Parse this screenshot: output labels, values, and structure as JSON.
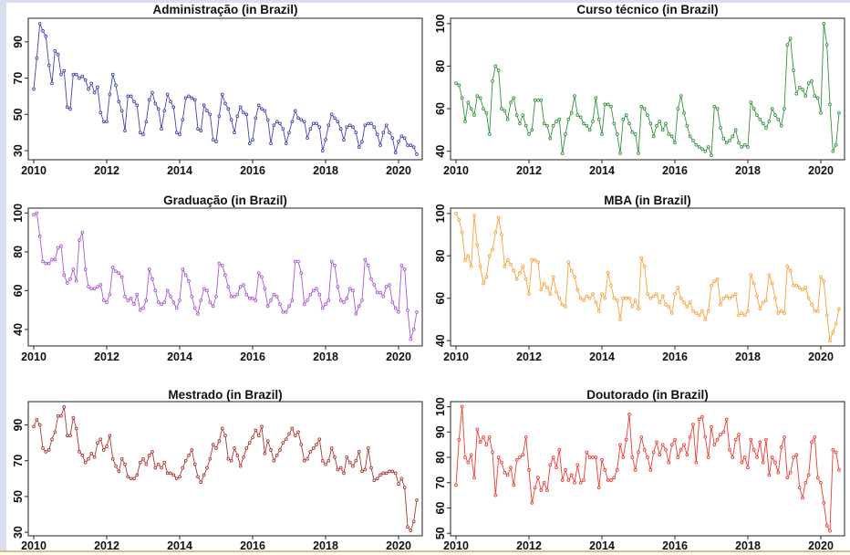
{
  "page": {
    "background": "#ffffff",
    "top_strip_color": "#d9ddf0",
    "left_strip_color": "#d9ddf0",
    "bottom_line_color": "#d9be7f",
    "bottom_strip_color": "#fffdf2",
    "axis_color": "#333333",
    "text_color": "#111111"
  },
  "chart_data": [
    {
      "type": "line",
      "title": "Administração (in Brazil)",
      "color": "#4143b0",
      "frequency": "monthly",
      "x_start": "2010-01",
      "x_end": "2020-07",
      "xticks": [
        2010,
        2012,
        2014,
        2016,
        2018,
        2020
      ],
      "yticks": [
        30,
        50,
        70,
        90
      ],
      "ylim": [
        25,
        103
      ],
      "xlim": [
        2009.85,
        2020.65
      ],
      "values": [
        64,
        81,
        100,
        96,
        93,
        77,
        67,
        85,
        83,
        72,
        74,
        54,
        53,
        72,
        72,
        70,
        71,
        69,
        64,
        67,
        62,
        65,
        51,
        46,
        46,
        61,
        72,
        66,
        57,
        52,
        41,
        60,
        60,
        57,
        55,
        40,
        39,
        46,
        58,
        62,
        56,
        53,
        42,
        52,
        61,
        57,
        54,
        40,
        39,
        47,
        59,
        60,
        59,
        58,
        42,
        41,
        55,
        52,
        50,
        36,
        35,
        49,
        61,
        56,
        53,
        47,
        40,
        49,
        54,
        51,
        50,
        34,
        36,
        48,
        55,
        53,
        52,
        47,
        34,
        44,
        46,
        45,
        42,
        34,
        40,
        46,
        52,
        48,
        47,
        46,
        37,
        42,
        45,
        45,
        43,
        30,
        36,
        44,
        50,
        48,
        46,
        42,
        36,
        43,
        44,
        43,
        40,
        32,
        35,
        44,
        45,
        45,
        43,
        39,
        33,
        40,
        44,
        40,
        37,
        29,
        35,
        38,
        37,
        33,
        33,
        32,
        28
      ]
    },
    {
      "type": "line",
      "title": "Curso técnico (in Brazil)",
      "color": "#35913f",
      "frequency": "monthly",
      "x_start": "2010-01",
      "x_end": "2020-07",
      "xticks": [
        2010,
        2012,
        2014,
        2016,
        2018,
        2020
      ],
      "yticks": [
        40,
        60,
        80,
        100
      ],
      "ylim": [
        36,
        102.5
      ],
      "xlim": [
        2009.85,
        2020.65
      ],
      "values": [
        72,
        71,
        65,
        54,
        63,
        60,
        57,
        66,
        65,
        60,
        58,
        48,
        73,
        80,
        78,
        60,
        59,
        55,
        63,
        65,
        57,
        53,
        57,
        52,
        48,
        50,
        64,
        64,
        64,
        53,
        52,
        46,
        52,
        54,
        55,
        39,
        48,
        55,
        58,
        66,
        57,
        56,
        53,
        52,
        50,
        54,
        65,
        55,
        48,
        62,
        62,
        61,
        53,
        48,
        39,
        55,
        57,
        53,
        49,
        48,
        39,
        61,
        60,
        57,
        53,
        47,
        52,
        54,
        50,
        53,
        48,
        47,
        44,
        60,
        66,
        58,
        52,
        47,
        45,
        43,
        42,
        41,
        40,
        42,
        38,
        61,
        60,
        51,
        46,
        44,
        45,
        47,
        50,
        44,
        42,
        43,
        42,
        63,
        60,
        57,
        55,
        53,
        51,
        54,
        60,
        57,
        55,
        52,
        60,
        90,
        93,
        78,
        67,
        70,
        69,
        66,
        72,
        73,
        66,
        65,
        58,
        100,
        90,
        62,
        40,
        43,
        58
      ]
    },
    {
      "type": "line",
      "title": "Graduação (in Brazil)",
      "color": "#a958d8",
      "frequency": "monthly",
      "x_start": "2010-01",
      "x_end": "2020-07",
      "xticks": [
        2010,
        2012,
        2014,
        2016,
        2018,
        2020
      ],
      "yticks": [
        40,
        60,
        80,
        100
      ],
      "ylim": [
        31.5,
        102.5
      ],
      "xlim": [
        2009.85,
        2020.65
      ],
      "values": [
        99,
        100,
        88,
        75,
        74,
        74,
        76,
        76,
        82,
        83,
        68,
        64,
        66,
        71,
        65,
        86,
        90,
        71,
        62,
        61,
        61,
        62,
        63,
        55,
        54,
        58,
        72,
        70,
        69,
        67,
        57,
        55,
        56,
        53,
        58,
        50,
        51,
        55,
        71,
        66,
        60,
        54,
        53,
        54,
        60,
        57,
        54,
        51,
        55,
        71,
        68,
        65,
        57,
        51,
        48,
        55,
        61,
        60,
        54,
        52,
        57,
        74,
        73,
        68,
        62,
        57,
        57,
        58,
        62,
        63,
        58,
        56,
        56,
        55,
        69,
        67,
        61,
        52,
        55,
        58,
        57,
        53,
        49,
        49,
        52,
        55,
        75,
        75,
        69,
        53,
        55,
        58,
        60,
        61,
        58,
        51,
        53,
        55,
        75,
        73,
        62,
        55,
        54,
        56,
        61,
        60,
        48,
        52,
        55,
        76,
        73,
        66,
        63,
        59,
        59,
        57,
        62,
        63,
        54,
        51,
        49,
        73,
        71,
        50,
        35,
        40,
        49
      ]
    },
    {
      "type": "line",
      "title": "MBA (in Brazil)",
      "color": "#f9a03c",
      "frequency": "monthly",
      "x_start": "2010-01",
      "x_end": "2020-07",
      "xticks": [
        2010,
        2012,
        2014,
        2016,
        2018,
        2020
      ],
      "yticks": [
        40,
        60,
        80,
        100
      ],
      "ylim": [
        37.5,
        102.5
      ],
      "xlim": [
        2009.85,
        2020.65
      ],
      "values": [
        100,
        97,
        91,
        78,
        80,
        75,
        99,
        85,
        75,
        67,
        70,
        80,
        83,
        91,
        98,
        90,
        75,
        78,
        76,
        73,
        69,
        72,
        75,
        69,
        62,
        78,
        78,
        77,
        64,
        67,
        65,
        62,
        70,
        63,
        60,
        57,
        56,
        77,
        73,
        70,
        64,
        60,
        59,
        61,
        60,
        62,
        58,
        54,
        62,
        60,
        72,
        66,
        60,
        59,
        50,
        60,
        60,
        60,
        56,
        59,
        55,
        79,
        75,
        62,
        60,
        61,
        62,
        58,
        61,
        57,
        56,
        53,
        62,
        65,
        60,
        58,
        56,
        58,
        54,
        53,
        52,
        54,
        50,
        54,
        66,
        68,
        69,
        57,
        60,
        61,
        60,
        61,
        62,
        52,
        53,
        52,
        54,
        71,
        67,
        61,
        55,
        58,
        59,
        71,
        67,
        60,
        53,
        54,
        53,
        75,
        73,
        66,
        66,
        65,
        64,
        65,
        60,
        57,
        54,
        54,
        70,
        68,
        52,
        40,
        44,
        48,
        55
      ]
    },
    {
      "type": "line",
      "title": "Mestrado (in Brazil)",
      "color": "#a93832",
      "frequency": "monthly",
      "x_start": "2010-01",
      "x_end": "2020-07",
      "xticks": [
        2010,
        2012,
        2014,
        2016,
        2018,
        2020
      ],
      "yticks": [
        30,
        50,
        70,
        90
      ],
      "ylim": [
        28,
        103
      ],
      "xlim": [
        2009.85,
        2020.65
      ],
      "values": [
        89,
        93,
        90,
        77,
        75,
        76,
        82,
        86,
        95,
        95,
        100,
        84,
        84,
        94,
        88,
        75,
        73,
        69,
        71,
        74,
        72,
        80,
        82,
        76,
        78,
        84,
        71,
        67,
        64,
        71,
        68,
        61,
        60,
        60,
        62,
        69,
        71,
        68,
        73,
        75,
        66,
        68,
        66,
        69,
        63,
        63,
        62,
        60,
        61,
        66,
        70,
        73,
        76,
        68,
        61,
        58,
        62,
        66,
        71,
        79,
        77,
        81,
        88,
        84,
        71,
        70,
        77,
        73,
        67,
        72,
        77,
        80,
        83,
        87,
        84,
        89,
        74,
        81,
        76,
        70,
        73,
        76,
        80,
        82,
        85,
        88,
        84,
        86,
        79,
        70,
        71,
        75,
        77,
        79,
        82,
        70,
        68,
        70,
        77,
        72,
        65,
        66,
        63,
        72,
        69,
        67,
        70,
        75,
        64,
        65,
        77,
        66,
        59,
        60,
        62,
        63,
        63,
        64,
        64,
        63,
        57,
        60,
        55,
        33,
        31,
        36,
        48
      ]
    },
    {
      "type": "line",
      "title": "Doutorado (in Brazil)",
      "color": "#ef3b33",
      "frequency": "monthly",
      "x_start": "2010-01",
      "x_end": "2020-07",
      "xticks": [
        2010,
        2012,
        2014,
        2016,
        2018,
        2020
      ],
      "yticks": [
        50,
        60,
        70,
        80,
        90,
        100
      ],
      "ylim": [
        49,
        102
      ],
      "xlim": [
        2009.85,
        2020.65
      ],
      "values": [
        69,
        87,
        100,
        80,
        78,
        81,
        72,
        91,
        86,
        88,
        85,
        88,
        82,
        65,
        80,
        78,
        74,
        73,
        76,
        69,
        79,
        80,
        81,
        88,
        75,
        62,
        68,
        72,
        67,
        70,
        67,
        77,
        80,
        76,
        83,
        71,
        75,
        71,
        73,
        70,
        77,
        70,
        71,
        82,
        80,
        80,
        80,
        68,
        79,
        75,
        71,
        71,
        72,
        75,
        85,
        80,
        87,
        97,
        80,
        75,
        82,
        88,
        83,
        80,
        75,
        82,
        86,
        81,
        85,
        83,
        78,
        85,
        87,
        80,
        83,
        85,
        81,
        88,
        93,
        78,
        95,
        96,
        88,
        80,
        92,
        85,
        87,
        89,
        90,
        95,
        83,
        80,
        87,
        89,
        78,
        80,
        76,
        87,
        83,
        80,
        86,
        78,
        87,
        73,
        80,
        78,
        74,
        84,
        88,
        72,
        74,
        80,
        81,
        68,
        64,
        70,
        73,
        86,
        88,
        72,
        70,
        62,
        53,
        51,
        83,
        82,
        75
      ]
    }
  ]
}
